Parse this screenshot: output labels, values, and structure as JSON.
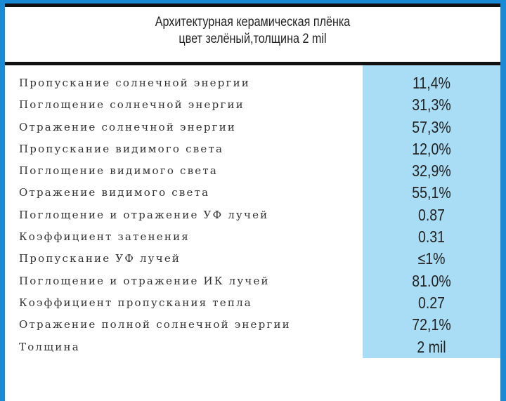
{
  "title": {
    "line1": "Архитектурная керамическая плёнка",
    "line2": "цвет зелёный,толщина 2 mil"
  },
  "colors": {
    "frame": "#1a8ad4",
    "value_column": "#a9dcf5",
    "bars": "#111111"
  },
  "rows": [
    {
      "label": "Пропускание солнечной энергии",
      "value": "11,4%"
    },
    {
      "label": "Поглощение солнечной энергии",
      "value": "31,3%"
    },
    {
      "label": "Отражение солнечной энергии",
      "value": "57,3%"
    },
    {
      "label": "Пропускание видимого света",
      "value": "12,0%"
    },
    {
      "label": "Поглощение видимого света",
      "value": "32,9%"
    },
    {
      "label": "Отражение видимого света",
      "value": "55,1%"
    },
    {
      "label": "Поглощение и отражение УФ лучей",
      "value": "0.87"
    },
    {
      "label": "Коэффициент затенения",
      "value": "0.31"
    },
    {
      "label": "Пропускание УФ лучей",
      "value": "≤1%"
    },
    {
      "label": "Поглощение и отражение ИК лучей",
      "value": "81.0%"
    },
    {
      "label": "Коэффициент пропускания тепла",
      "value": "0.27"
    },
    {
      "label": "Отражение полной солнечной энергии",
      "value": "72,1%"
    },
    {
      "label": "Толщина",
      "value": "2 mil"
    }
  ]
}
